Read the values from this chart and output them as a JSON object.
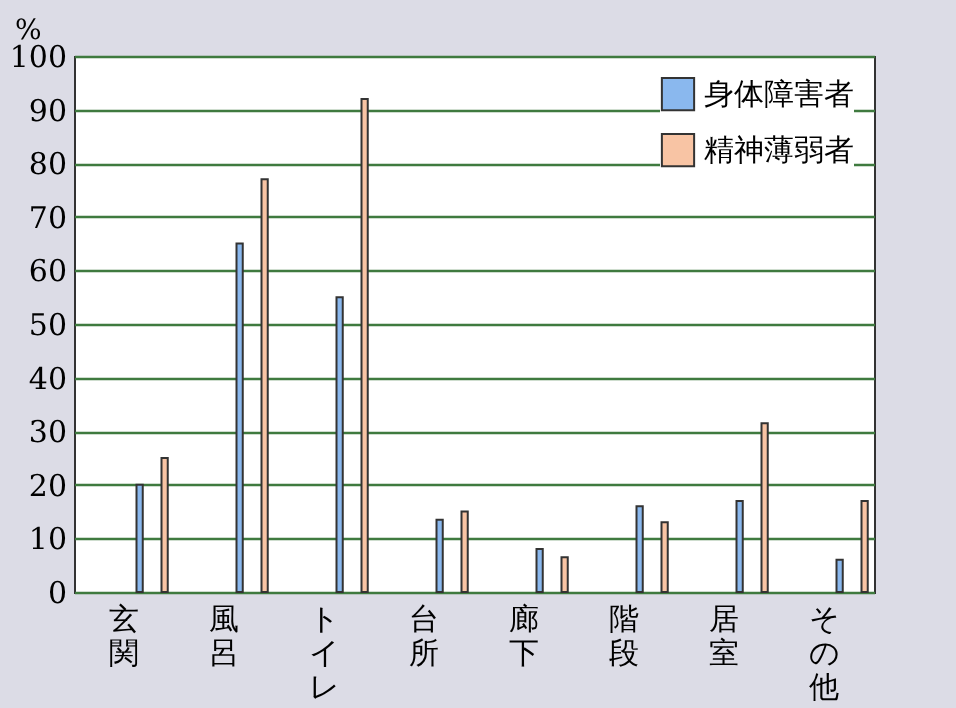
{
  "chart_data": {
    "type": "bar",
    "ylabel": "%",
    "categories": [
      "玄関",
      "風呂",
      "トイレ",
      "台所",
      "廊下",
      "階段",
      "居室",
      "その他"
    ],
    "series": [
      {
        "name": "身体障害者",
        "color": "#8ab8ee",
        "values": [
          20,
          65,
          55,
          13.5,
          8,
          16,
          17,
          6
        ]
      },
      {
        "name": "精神薄弱者",
        "color": "#f8c4a4",
        "values": [
          25,
          77,
          92,
          15,
          6.5,
          13,
          31.5,
          17
        ]
      }
    ],
    "ylim": [
      0,
      100
    ],
    "yticks": [
      0,
      10,
      20,
      30,
      40,
      50,
      60,
      70,
      80,
      90,
      100
    ],
    "grid": true,
    "legend": "top right"
  }
}
